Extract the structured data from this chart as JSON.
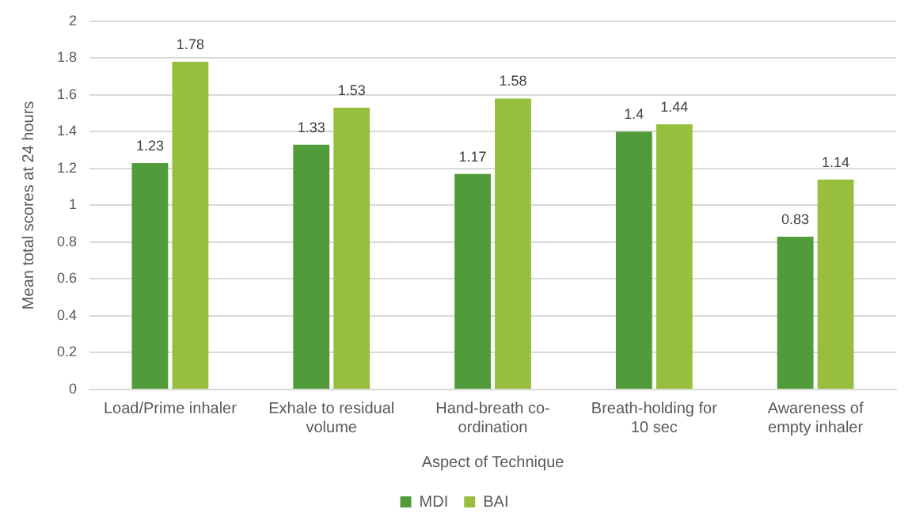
{
  "chart_data": {
    "type": "bar",
    "xlabel": "Aspect of Technique",
    "ylabel": "Mean total scores at 24 hours",
    "categories": [
      "Load/Prime inhaler",
      "Exhale to residual volume",
      "Hand-breath co-ordination",
      "Breath-holding for 10 sec",
      "Awareness of empty inhaler"
    ],
    "series": [
      {
        "name": "MDI",
        "color": "#529b3a",
        "values": [
          1.23,
          1.33,
          1.17,
          1.4,
          0.83
        ]
      },
      {
        "name": "BAI",
        "color": "#97bf3d",
        "values": [
          1.78,
          1.53,
          1.58,
          1.44,
          1.14
        ]
      }
    ],
    "ylim": [
      0,
      2
    ],
    "yticks": [
      0,
      0.2,
      0.4,
      0.6,
      0.8,
      1,
      1.2,
      1.4,
      1.6,
      1.8,
      2
    ],
    "grid": "y",
    "legend": "bottom",
    "data_labels": true
  }
}
